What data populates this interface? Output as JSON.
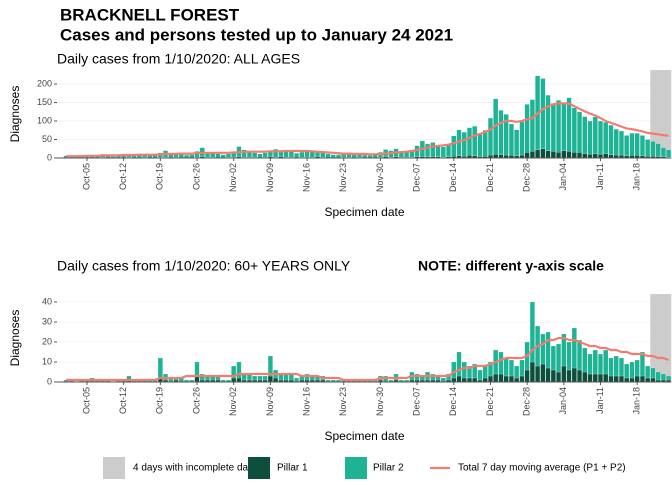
{
  "header": {
    "title": "BRACKNELL FOREST",
    "subtitle": "Cases and persons tested up to January 24 2021"
  },
  "chart_data": [
    {
      "type": "stacked_bar",
      "panel_title": "Daily cases from 1/10/2020: ALL AGES",
      "y_label": "Diagnoses",
      "x_label": "Specimen date",
      "incomplete_days": 4,
      "shade_label": "4 days with incomplete data",
      "shade_color": "#cccccc",
      "categories": [
        null,
        null,
        null,
        null,
        "Oct-05",
        null,
        null,
        null,
        null,
        null,
        null,
        "Oct-12",
        null,
        null,
        null,
        null,
        null,
        null,
        "Oct-19",
        null,
        null,
        null,
        null,
        null,
        null,
        "Oct-26",
        null,
        null,
        null,
        null,
        null,
        null,
        "Nov-02",
        null,
        null,
        null,
        null,
        null,
        null,
        "Nov-09",
        null,
        null,
        null,
        null,
        null,
        null,
        "Nov-16",
        null,
        null,
        null,
        null,
        null,
        null,
        "Nov-23",
        null,
        null,
        null,
        null,
        null,
        null,
        "Nov-30",
        null,
        null,
        null,
        null,
        null,
        null,
        "Dec-07",
        null,
        null,
        null,
        null,
        null,
        null,
        "Dec-14",
        null,
        null,
        null,
        null,
        null,
        null,
        "Dec-21",
        null,
        null,
        null,
        null,
        null,
        null,
        "Dec-28",
        null,
        null,
        null,
        null,
        null,
        null,
        "Jan-04",
        null,
        null,
        null,
        null,
        null,
        null,
        "Jan-11",
        null,
        null,
        null,
        null,
        null,
        null,
        "Jan-18",
        null,
        null,
        null,
        null,
        null,
        null
      ],
      "ylim": [
        0,
        238
      ],
      "yticks": [
        0,
        50,
        100,
        150,
        200
      ],
      "series": [
        {
          "name": "Pillar 1",
          "type": "bar",
          "color": "#0d4f3c",
          "values": [
            1,
            1,
            0,
            1,
            1,
            1,
            1,
            2,
            1,
            0,
            1,
            1,
            2,
            1,
            1,
            2,
            1,
            1,
            2,
            2,
            1,
            2,
            1,
            1,
            1,
            2,
            3,
            2,
            2,
            1,
            1,
            2,
            2,
            3,
            2,
            2,
            2,
            1,
            2,
            3,
            2,
            3,
            2,
            2,
            1,
            2,
            2,
            2,
            3,
            2,
            1,
            1,
            1,
            2,
            2,
            1,
            2,
            1,
            1,
            1,
            2,
            3,
            2,
            3,
            2,
            2,
            2,
            3,
            4,
            3,
            4,
            3,
            2,
            3,
            5,
            6,
            5,
            7,
            6,
            4,
            5,
            8,
            10,
            9,
            8,
            7,
            6,
            8,
            15,
            18,
            22,
            25,
            20,
            18,
            16,
            20,
            18,
            16,
            15,
            12,
            10,
            11,
            10,
            12,
            9,
            8,
            8,
            6,
            7,
            7,
            6,
            5,
            5,
            4,
            3,
            2
          ]
        },
        {
          "name": "Pillar 2",
          "type": "bar",
          "color": "#1db394",
          "values": [
            5,
            6,
            4,
            3,
            6,
            7,
            5,
            8,
            6,
            4,
            5,
            8,
            9,
            7,
            10,
            8,
            6,
            7,
            12,
            18,
            10,
            11,
            9,
            7,
            8,
            16,
            25,
            14,
            12,
            10,
            8,
            9,
            15,
            28,
            20,
            14,
            12,
            10,
            12,
            16,
            22,
            18,
            20,
            17,
            12,
            14,
            18,
            15,
            14,
            12,
            10,
            8,
            8,
            10,
            12,
            9,
            8,
            7,
            6,
            8,
            14,
            20,
            18,
            22,
            16,
            14,
            20,
            30,
            42,
            35,
            38,
            30,
            28,
            35,
            55,
            70,
            65,
            75,
            80,
            60,
            70,
            100,
            150,
            120,
            110,
            85,
            70,
            90,
            130,
            140,
            200,
            190,
            150,
            130,
            140,
            130,
            145,
            120,
            110,
            100,
            90,
            100,
            90,
            85,
            80,
            70,
            65,
            55,
            60,
            60,
            55,
            45,
            40,
            35,
            25,
            20
          ]
        },
        {
          "name": "Total 7 day moving average (P1 + P2)",
          "type": "line",
          "color": "#f27c72",
          "values": [
            5,
            5,
            5,
            5,
            6,
            6,
            6,
            7,
            7,
            7,
            7,
            8,
            8,
            8,
            9,
            9,
            9,
            9,
            10,
            11,
            11,
            11,
            12,
            12,
            12,
            13,
            14,
            14,
            14,
            14,
            14,
            14,
            15,
            16,
            17,
            17,
            17,
            17,
            17,
            18,
            18,
            18,
            19,
            19,
            19,
            19,
            19,
            18,
            17,
            16,
            15,
            14,
            13,
            12,
            12,
            11,
            11,
            11,
            10,
            10,
            11,
            12,
            13,
            15,
            16,
            17,
            19,
            22,
            25,
            28,
            31,
            33,
            34,
            36,
            40,
            44,
            49,
            54,
            61,
            65,
            70,
            77,
            88,
            95,
            100,
            100,
            98,
            100,
            105,
            108,
            120,
            132,
            140,
            145,
            148,
            148,
            147,
            140,
            133,
            126,
            120,
            115,
            108,
            100,
            95,
            90,
            85,
            80,
            78,
            75,
            72,
            68,
            66,
            64,
            62,
            60
          ]
        }
      ]
    },
    {
      "type": "stacked_bar",
      "panel_title": "Daily cases from 1/10/2020: 60+ YEARS ONLY",
      "note": "NOTE: different y-axis scale",
      "y_label": "Diagnoses",
      "x_label": "Specimen date",
      "incomplete_days": 4,
      "shade_color": "#cccccc",
      "categories": [
        null,
        null,
        null,
        null,
        "Oct-05",
        null,
        null,
        null,
        null,
        null,
        null,
        "Oct-12",
        null,
        null,
        null,
        null,
        null,
        null,
        "Oct-19",
        null,
        null,
        null,
        null,
        null,
        null,
        "Oct-26",
        null,
        null,
        null,
        null,
        null,
        null,
        "Nov-02",
        null,
        null,
        null,
        null,
        null,
        null,
        "Nov-09",
        null,
        null,
        null,
        null,
        null,
        null,
        "Nov-16",
        null,
        null,
        null,
        null,
        null,
        null,
        "Nov-23",
        null,
        null,
        null,
        null,
        null,
        null,
        "Nov-30",
        null,
        null,
        null,
        null,
        null,
        null,
        "Dec-07",
        null,
        null,
        null,
        null,
        null,
        null,
        "Dec-14",
        null,
        null,
        null,
        null,
        null,
        null,
        "Dec-21",
        null,
        null,
        null,
        null,
        null,
        null,
        "Dec-28",
        null,
        null,
        null,
        null,
        null,
        null,
        "Jan-04",
        null,
        null,
        null,
        null,
        null,
        null,
        "Jan-11",
        null,
        null,
        null,
        null,
        null,
        null,
        "Jan-18",
        null,
        null,
        null,
        null,
        null,
        null
      ],
      "ylim": [
        0,
        44
      ],
      "yticks": [
        0,
        10,
        20,
        30,
        40
      ],
      "series": [
        {
          "type": "bar",
          "color": "#0d4f3c",
          "values": [
            0,
            0,
            0,
            0,
            0,
            0,
            0,
            0,
            0,
            0,
            0,
            0,
            1,
            0,
            0,
            0,
            0,
            0,
            2,
            1,
            0,
            1,
            0,
            0,
            0,
            3,
            1,
            1,
            1,
            1,
            0,
            0,
            2,
            2,
            1,
            1,
            1,
            1,
            1,
            3,
            2,
            1,
            1,
            1,
            0,
            1,
            1,
            1,
            1,
            1,
            0,
            0,
            0,
            0,
            0,
            0,
            0,
            0,
            0,
            0,
            1,
            0,
            0,
            1,
            0,
            0,
            1,
            1,
            1,
            1,
            1,
            1,
            0,
            1,
            2,
            3,
            2,
            2,
            2,
            1,
            2,
            3,
            4,
            4,
            3,
            3,
            2,
            3,
            6,
            10,
            8,
            9,
            7,
            6,
            5,
            8,
            6,
            7,
            6,
            5,
            4,
            4,
            4,
            4,
            3,
            3,
            3,
            2,
            2,
            3,
            3,
            2,
            2,
            1,
            1,
            1
          ]
        },
        {
          "type": "bar",
          "color": "#1db394",
          "values": [
            1,
            1,
            0,
            1,
            1,
            2,
            1,
            1,
            1,
            0,
            1,
            1,
            2,
            1,
            1,
            1,
            1,
            1,
            10,
            3,
            2,
            1,
            2,
            1,
            1,
            7,
            3,
            2,
            2,
            2,
            1,
            1,
            6,
            8,
            3,
            3,
            2,
            2,
            2,
            10,
            4,
            3,
            3,
            3,
            2,
            2,
            3,
            2,
            2,
            2,
            1,
            1,
            1,
            1,
            1,
            1,
            1,
            1,
            1,
            1,
            2,
            3,
            1,
            3,
            1,
            1,
            4,
            3,
            2,
            4,
            3,
            2,
            2,
            3,
            8,
            12,
            8,
            6,
            7,
            5,
            6,
            7,
            12,
            11,
            9,
            8,
            6,
            8,
            14,
            30,
            20,
            15,
            18,
            12,
            14,
            16,
            14,
            20,
            15,
            12,
            10,
            12,
            10,
            12,
            9,
            10,
            9,
            7,
            8,
            8,
            12,
            6,
            5,
            4,
            3,
            2
          ]
        },
        {
          "type": "line",
          "color": "#f27c72",
          "values": [
            1,
            1,
            1,
            1,
            1,
            1,
            1,
            1,
            1,
            1,
            1,
            1,
            1,
            1,
            1,
            1,
            1,
            1,
            2,
            2,
            2,
            2,
            2,
            3,
            3,
            3,
            3,
            3,
            3,
            3,
            3,
            3,
            3,
            4,
            4,
            4,
            4,
            4,
            4,
            4,
            4,
            4,
            4,
            4,
            4,
            3,
            3,
            3,
            3,
            2,
            2,
            2,
            2,
            1,
            1,
            1,
            1,
            1,
            1,
            1,
            2,
            2,
            2,
            2,
            2,
            2,
            3,
            3,
            3,
            3,
            3,
            3,
            3,
            3,
            5,
            6,
            7,
            7,
            8,
            8,
            8,
            9,
            10,
            11,
            12,
            12,
            12,
            12,
            13,
            16,
            18,
            19,
            21,
            21,
            22,
            22,
            21,
            21,
            20,
            19,
            18,
            18,
            17,
            17,
            16,
            16,
            15,
            15,
            14,
            14,
            14,
            13,
            13,
            12,
            12,
            11
          ]
        }
      ]
    }
  ]
}
